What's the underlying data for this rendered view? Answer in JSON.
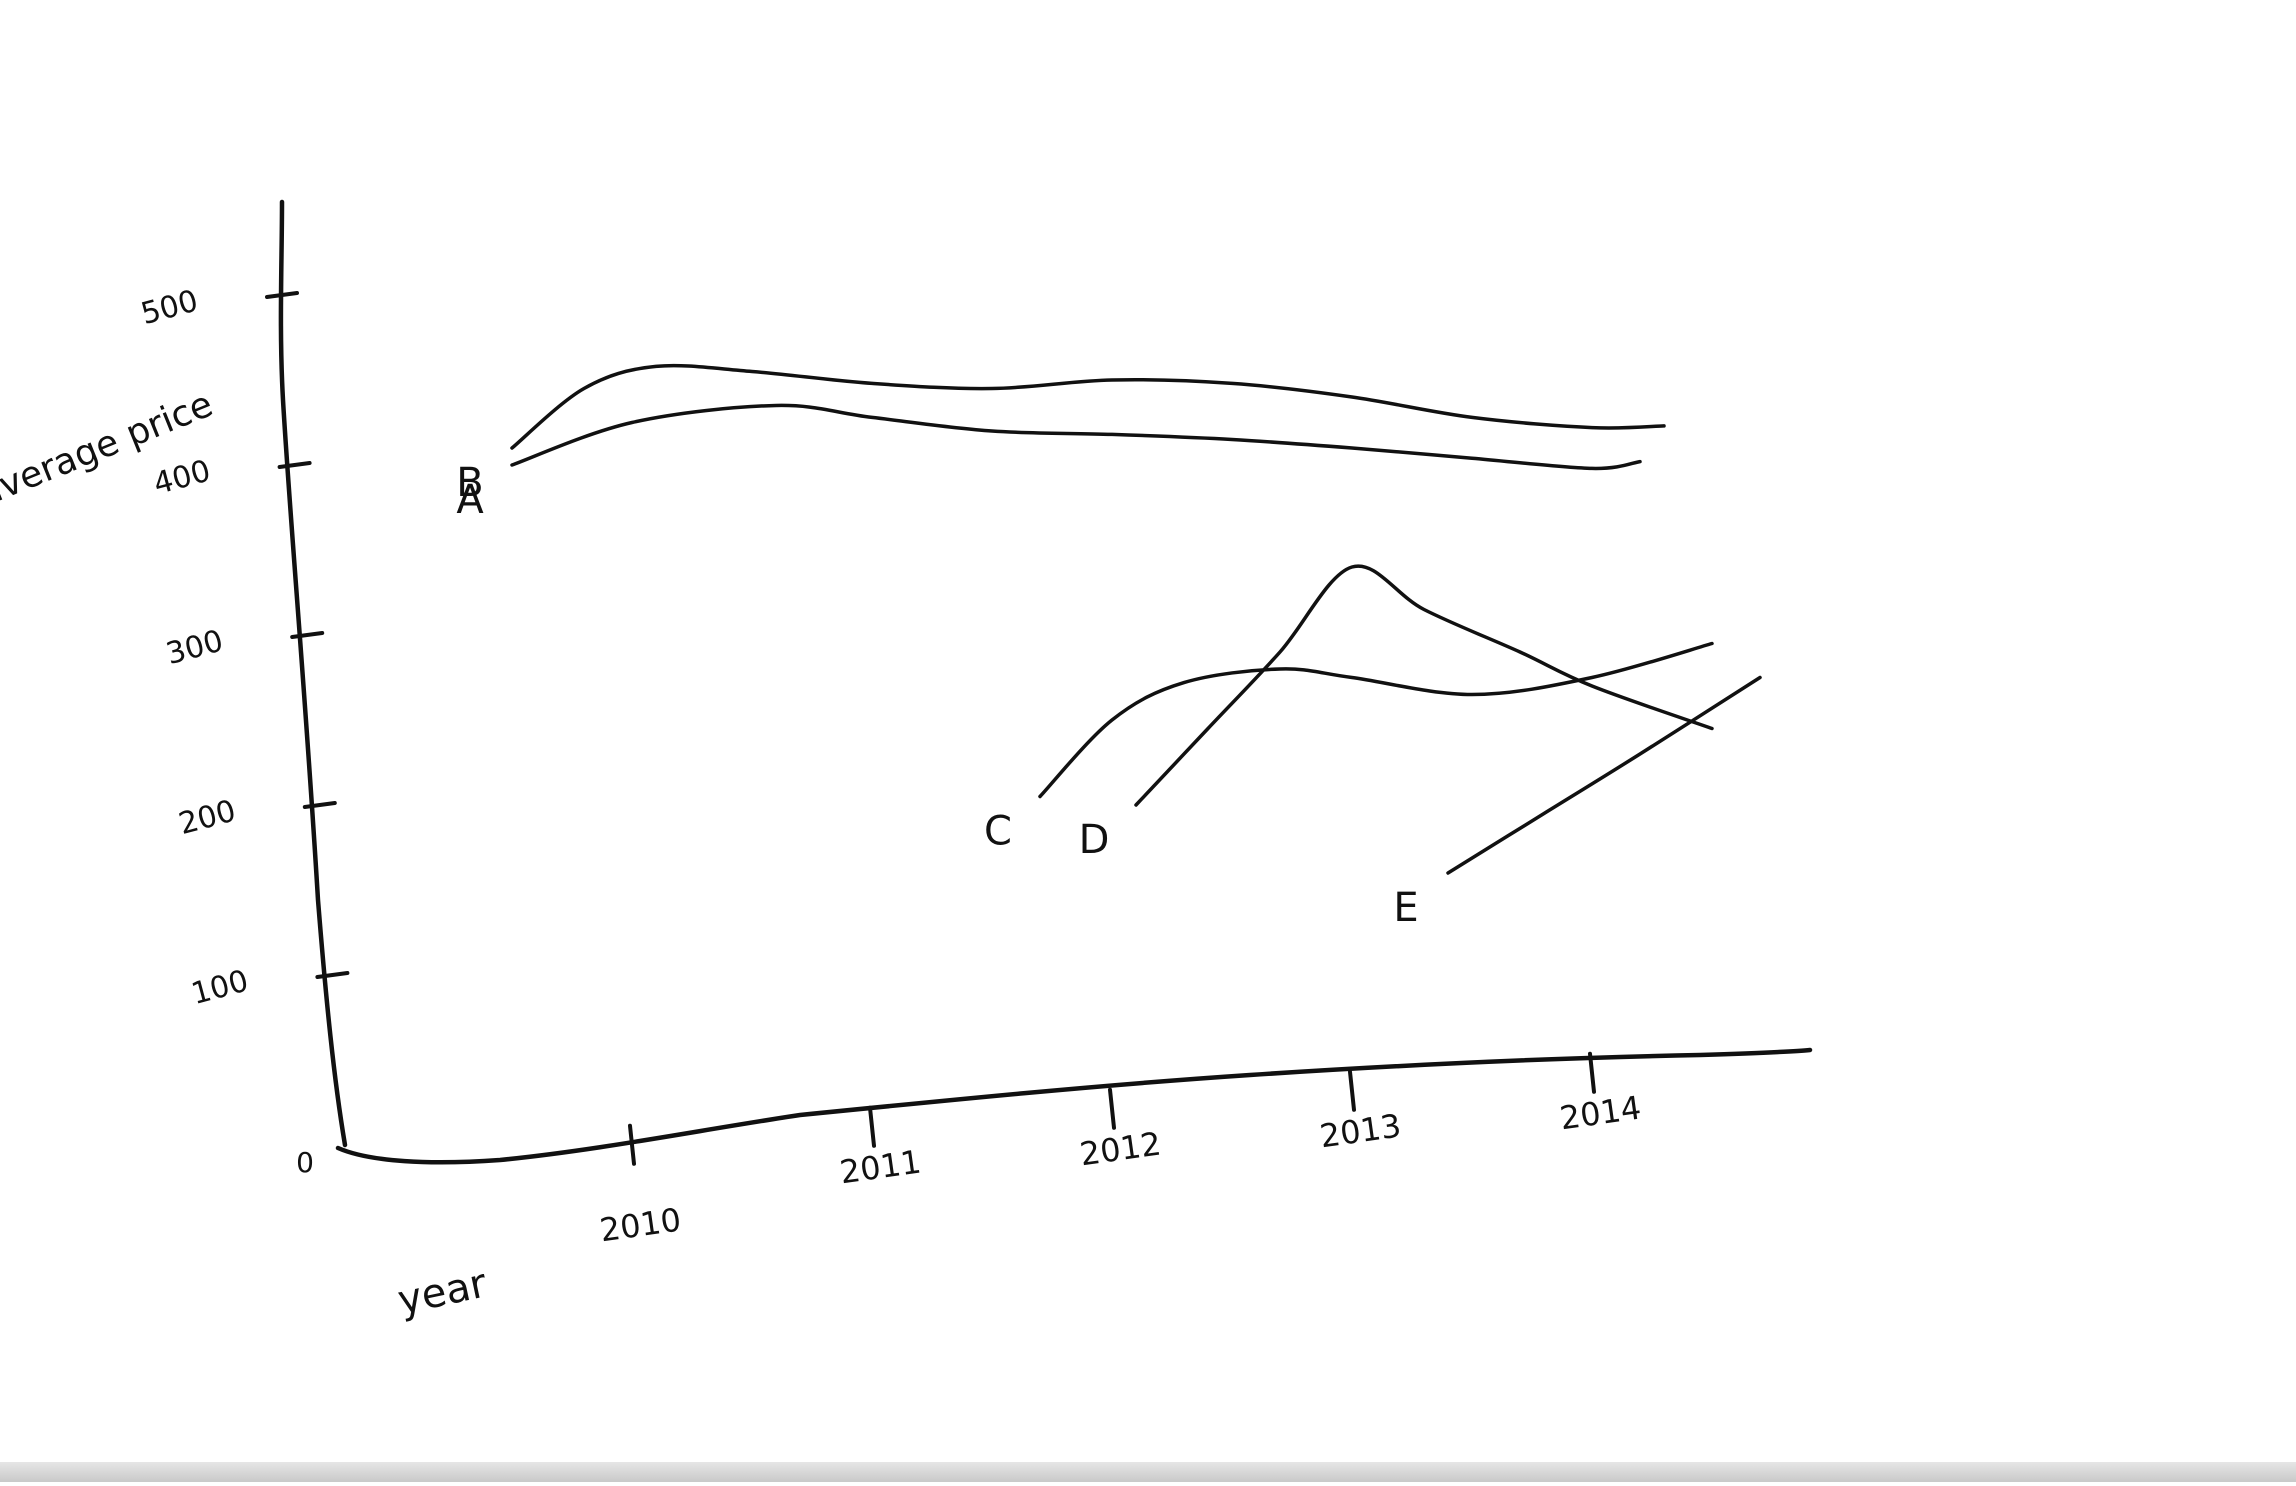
{
  "chart_data": {
    "type": "line",
    "title": "",
    "xlabel": "year",
    "ylabel": "average price",
    "origin_label": "0",
    "x_ticks": [
      "2010",
      "2011",
      "2012",
      "2013",
      "2014"
    ],
    "y_ticks": [
      "100",
      "200",
      "300",
      "400",
      "500"
    ],
    "xlim": [
      2008.9,
      2015.0
    ],
    "ylim": [
      0,
      500
    ],
    "grid": false,
    "legend": "none",
    "series": [
      {
        "name": "A",
        "x": [
          2009.5,
          2010.0,
          2010.6,
          2011.0,
          2011.5,
          2012.0,
          2012.5,
          2013.0,
          2013.5,
          2014.0,
          2014.2
        ],
        "y": [
          400,
          425,
          435,
          428,
          420,
          418,
          415,
          410,
          404,
          398,
          402
        ]
      },
      {
        "name": "B",
        "x": [
          2009.5,
          2009.8,
          2010.1,
          2010.5,
          2011.0,
          2011.5,
          2012.0,
          2012.5,
          2013.0,
          2013.5,
          2014.0,
          2014.3
        ],
        "y": [
          410,
          445,
          458,
          455,
          448,
          445,
          450,
          448,
          440,
          428,
          422,
          423
        ]
      },
      {
        "name": "C",
        "x": [
          2011.7,
          2012.0,
          2012.3,
          2012.7,
          2013.0,
          2013.5,
          2014.0,
          2014.5
        ],
        "y": [
          205,
          250,
          272,
          280,
          275,
          265,
          275,
          295
        ]
      },
      {
        "name": "D",
        "x": [
          2012.1,
          2012.4,
          2012.7,
          2013.0,
          2013.3,
          2013.7,
          2014.0,
          2014.5
        ],
        "y": [
          200,
          245,
          290,
          340,
          315,
          290,
          270,
          245
        ]
      },
      {
        "name": "E",
        "x": [
          2013.4,
          2013.8,
          2014.2,
          2014.7
        ],
        "y": [
          160,
          195,
          230,
          275
        ]
      }
    ]
  }
}
